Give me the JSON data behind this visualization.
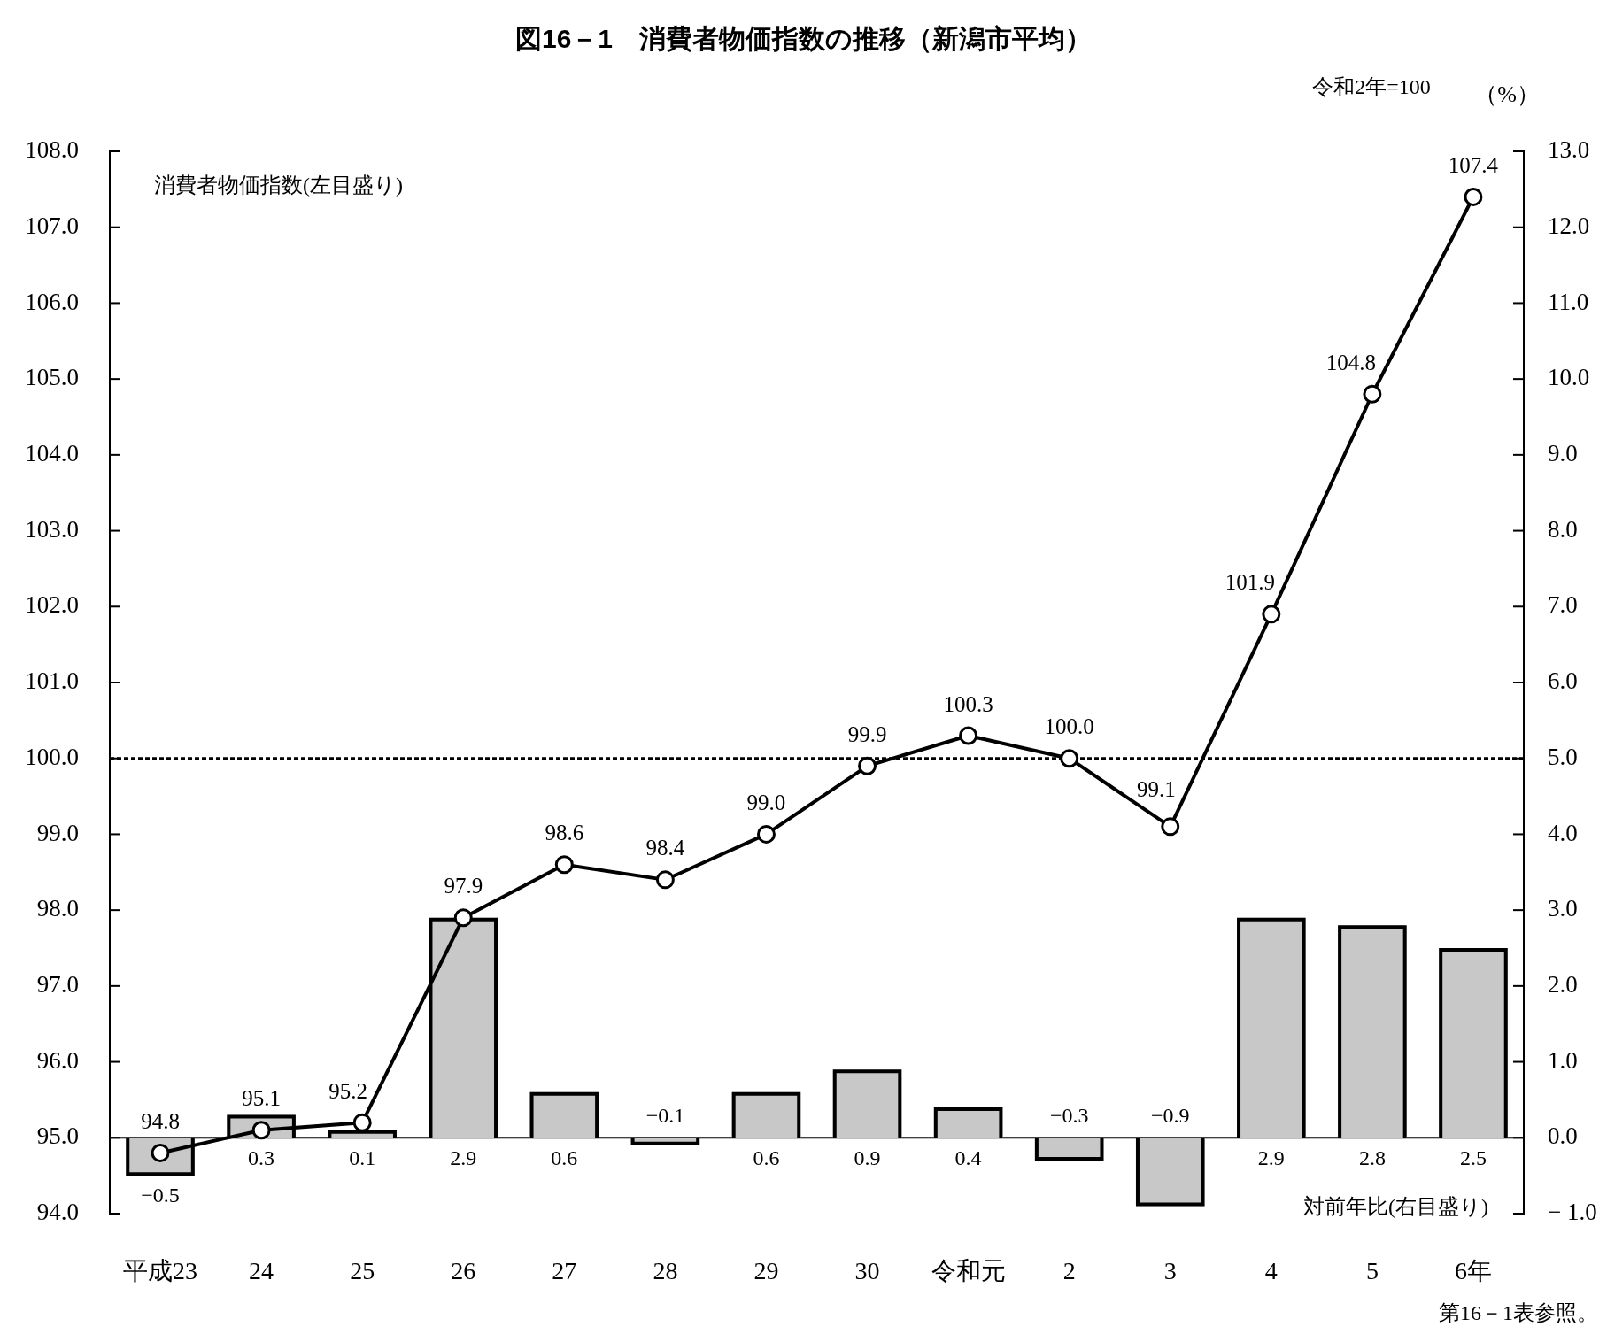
{
  "chart_data": {
    "type": "bar",
    "title": "図16－1　消費者物価指数の推移（新潟市平均）",
    "y2label": "（%）",
    "annotations": [
      "令和2年=100",
      "消費者物価指数(左目盛り)",
      "第16－1表参照。"
    ],
    "categories": [
      "平成23",
      "24",
      "25",
      "26",
      "27",
      "28",
      "29",
      "30",
      "令和元",
      "2",
      "3",
      "4",
      "5",
      "6年"
    ],
    "series": [
      {
        "name": "対前年比(右目盛り)",
        "axis": "y2",
        "color": "#c8c8c8",
        "values": [
          -0.5,
          0.3,
          0.1,
          2.9,
          0.6,
          -0.1,
          0.6,
          0.9,
          0.4,
          -0.3,
          -0.9,
          2.9,
          2.8,
          2.5
        ],
        "value_labels": [
          "−0.5",
          "0.3",
          "0.1",
          "2.9",
          "0.6",
          "−0.1",
          "0.6",
          "0.9",
          "0.4",
          "−0.3",
          "−0.9",
          "2.9",
          "2.8",
          "2.5"
        ]
      },
      {
        "type": "line",
        "color": "#000000",
        "values": [
          94.8,
          95.1,
          95.2,
          97.9,
          98.6,
          98.4,
          99.0,
          99.9,
          100.3,
          100.0,
          99.1,
          101.9,
          104.8,
          107.4
        ],
        "value_labels": [
          "94.8",
          "95.1",
          "95.2",
          "97.9",
          "98.6",
          "98.4",
          "99.0",
          "99.9",
          "100.3",
          "100.0",
          "99.1",
          "101.9",
          "104.8",
          "107.4"
        ]
      }
    ],
    "ylim": [
      94,
      108
    ],
    "yticks": [
      {
        "value": 94,
        "label": "94.0"
      },
      {
        "value": 95,
        "label": "95.0"
      },
      {
        "value": 96,
        "label": "96.0"
      },
      {
        "value": 97,
        "label": "97.0"
      },
      {
        "value": 98,
        "label": "98.0"
      },
      {
        "value": 99,
        "label": "99.0"
      },
      {
        "value": 100,
        "label": "100.0"
      },
      {
        "value": 101,
        "label": "101.0"
      },
      {
        "value": 102,
        "label": "102.0"
      },
      {
        "value": 103,
        "label": "103.0"
      },
      {
        "value": 104,
        "label": "104.0"
      },
      {
        "value": 105,
        "label": "105.0"
      },
      {
        "value": 106,
        "label": "106.0"
      },
      {
        "value": 107,
        "label": "107.0"
      },
      {
        "value": 108,
        "label": "108.0"
      }
    ],
    "y2lim": [
      -1,
      13
    ],
    "y2ticks": [
      {
        "value": -1,
        "label": "− 1.0"
      },
      {
        "value": 0,
        "label": "0.0"
      },
      {
        "value": 1,
        "label": "1.0"
      },
      {
        "value": 2,
        "label": "2.0"
      },
      {
        "value": 3,
        "label": "3.0"
      },
      {
        "value": 4,
        "label": "4.0"
      },
      {
        "value": 5,
        "label": "5.0"
      },
      {
        "value": 6,
        "label": "6.0"
      },
      {
        "value": 7,
        "label": "7.0"
      },
      {
        "value": 8,
        "label": "8.0"
      },
      {
        "value": 9,
        "label": "9.0"
      },
      {
        "value": 10,
        "label": "10.0"
      },
      {
        "value": 11,
        "label": "11.0"
      },
      {
        "value": 12,
        "label": "12.0"
      },
      {
        "value": 13,
        "label": "13.0"
      }
    ],
    "ref_lines": [
      {
        "axis": "y",
        "value": 100,
        "line_style": "dotted"
      }
    ],
    "marker": "circle",
    "line_style": "solid",
    "grid": false,
    "legend": false
  }
}
